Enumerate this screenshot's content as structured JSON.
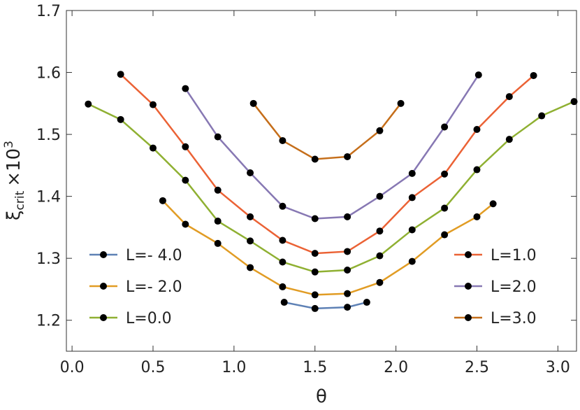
{
  "chart_data": {
    "type": "line",
    "xlabel": "θ",
    "ylabel": {
      "symbol": "ξ",
      "subscript": "crit",
      "multiplier": "×10",
      "exponent": "3"
    },
    "xlim": [
      -0.035,
      3.115
    ],
    "ylim": [
      1.15,
      1.7
    ],
    "xticks": [
      {
        "value": 0,
        "label": "0.0"
      },
      {
        "value": 0.5,
        "label": "0.5"
      },
      {
        "value": 1,
        "label": "1.0"
      },
      {
        "value": 1.5,
        "label": "1.5"
      },
      {
        "value": 2,
        "label": "2.0"
      },
      {
        "value": 2.5,
        "label": "2.5"
      },
      {
        "value": 3,
        "label": "3.0"
      }
    ],
    "yticks": [
      1.2,
      1.3,
      1.4,
      1.5,
      1.6,
      1.7
    ],
    "series": [
      {
        "name": "L=- 4.0",
        "color": "#5e81b5",
        "x": [
          1.31,
          1.5,
          1.7,
          1.82
        ],
        "values": [
          1.229,
          1.219,
          1.221,
          1.229
        ]
      },
      {
        "name": "L=- 2.0",
        "color": "#e19c24",
        "x": [
          0.56,
          0.7,
          0.9,
          1.1,
          1.3,
          1.5,
          1.7,
          1.9,
          2.1,
          2.3,
          2.5,
          2.6
        ],
        "values": [
          1.393,
          1.355,
          1.324,
          1.285,
          1.254,
          1.241,
          1.243,
          1.261,
          1.295,
          1.338,
          1.367,
          1.388
        ]
      },
      {
        "name": "L=0.0",
        "color": "#8fb032",
        "x": [
          0.1,
          0.3,
          0.5,
          0.7,
          0.9,
          1.1,
          1.3,
          1.5,
          1.7,
          1.9,
          2.1,
          2.3,
          2.5,
          2.7,
          2.9,
          3.1
        ],
        "values": [
          1.549,
          1.524,
          1.478,
          1.426,
          1.36,
          1.328,
          1.294,
          1.278,
          1.281,
          1.304,
          1.346,
          1.381,
          1.443,
          1.492,
          1.53,
          1.553
        ]
      },
      {
        "name": "L=1.0",
        "color": "#eb6235",
        "x": [
          0.3,
          0.5,
          0.7,
          0.9,
          1.1,
          1.3,
          1.5,
          1.7,
          1.9,
          2.1,
          2.3,
          2.5,
          2.7,
          2.85
        ],
        "values": [
          1.597,
          1.548,
          1.48,
          1.41,
          1.367,
          1.329,
          1.308,
          1.311,
          1.344,
          1.398,
          1.436,
          1.508,
          1.561,
          1.595
        ]
      },
      {
        "name": "L=2.0",
        "color": "#8778b3",
        "x": [
          0.7,
          0.9,
          1.1,
          1.3,
          1.5,
          1.7,
          1.9,
          2.1,
          2.3,
          2.51
        ],
        "values": [
          1.574,
          1.496,
          1.438,
          1.384,
          1.364,
          1.367,
          1.4,
          1.437,
          1.512,
          1.596
        ]
      },
      {
        "name": "L=3.0",
        "color": "#c56e1a",
        "x": [
          1.12,
          1.3,
          1.5,
          1.7,
          1.9,
          2.03
        ],
        "values": [
          1.55,
          1.49,
          1.46,
          1.464,
          1.506,
          1.55
        ]
      }
    ]
  }
}
